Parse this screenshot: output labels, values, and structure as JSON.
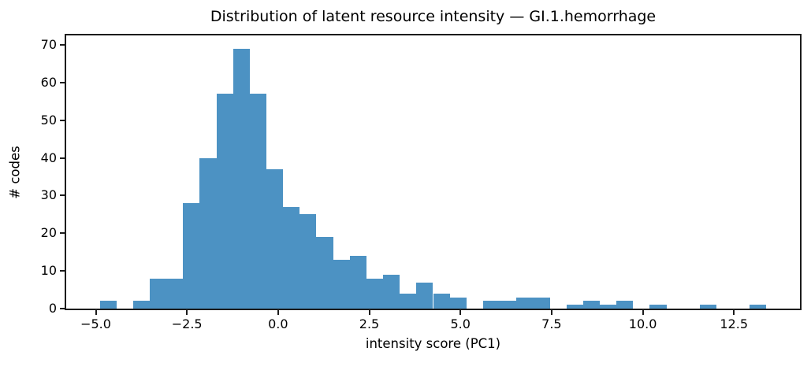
{
  "chart_data": {
    "type": "bar",
    "subtype": "histogram",
    "title": "Distribution of latent resource intensity — GI.1.hemorrhage",
    "xlabel": "intensity score (PC1)",
    "ylabel": "# codes",
    "bin_start": -4.89,
    "bin_width": 0.457,
    "counts": [
      2,
      0,
      2,
      8,
      8,
      28,
      40,
      57,
      69,
      57,
      37,
      27,
      25,
      19,
      13,
      14,
      8,
      9,
      4,
      7,
      4,
      3,
      0,
      2,
      2,
      3,
      3,
      0,
      1,
      2,
      1,
      2,
      0,
      1,
      0,
      0,
      1,
      0,
      0,
      1
    ],
    "total_count": 460,
    "xlim": [
      -5.81,
      14.31
    ],
    "ylim": [
      0,
      72.5
    ],
    "xticks": [
      {
        "value": -5.0,
        "label": "−5.0"
      },
      {
        "value": -2.5,
        "label": "−2.5"
      },
      {
        "value": 0.0,
        "label": "0.0"
      },
      {
        "value": 2.5,
        "label": "2.5"
      },
      {
        "value": 5.0,
        "label": "5.0"
      },
      {
        "value": 7.5,
        "label": "7.5"
      },
      {
        "value": 10.0,
        "label": "10.0"
      },
      {
        "value": 12.5,
        "label": "12.5"
      }
    ],
    "yticks": [
      {
        "value": 0,
        "label": "0"
      },
      {
        "value": 10,
        "label": "10"
      },
      {
        "value": 20,
        "label": "20"
      },
      {
        "value": 30,
        "label": "30"
      },
      {
        "value": 40,
        "label": "40"
      },
      {
        "value": 50,
        "label": "50"
      },
      {
        "value": 60,
        "label": "60"
      },
      {
        "value": 70,
        "label": "70"
      }
    ],
    "bar_color": "#4c92c3",
    "axis_color": "#1c1c1c",
    "text_color": "#000000",
    "background": "#ffffff",
    "grid": false,
    "legend": "none"
  }
}
